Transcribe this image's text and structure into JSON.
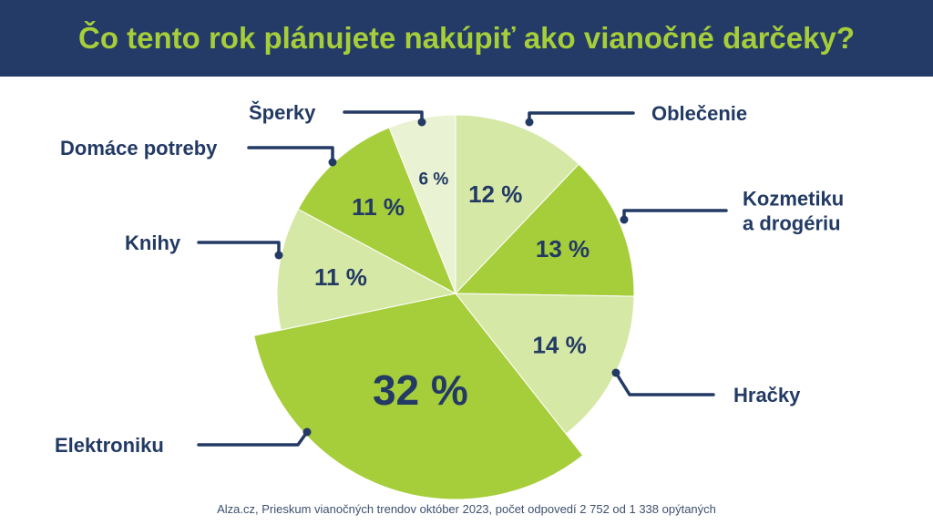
{
  "title": "Čo tento rok plánujete nakúpiť ako vianočné darčeky?",
  "source": "Alza.cz, Prieskum vianočných trendov október 2023, počet odpovedí 2 752 od 1 338 opýtaných",
  "colors": {
    "header_bg": "#233b66",
    "title": "#a6cd3a",
    "text": "#223a64",
    "green_dark": "#a6cd3a",
    "green_light": "#d6e8a6",
    "green_pale": "#e9f2d2"
  },
  "chart_data": {
    "type": "pie",
    "title": "Čo tento rok plánujete nakúpiť ako vianočné darčeky?",
    "slices": [
      {
        "label": "Oblečenie",
        "value": 12,
        "value_label": "12 %",
        "color": "#d6e8a6"
      },
      {
        "label": "Kozmetiku a drogériu",
        "label_lines": [
          "Kozmetiku",
          "a drogériu"
        ],
        "value": 13,
        "value_label": "13 %",
        "color": "#a6cd3a"
      },
      {
        "label": "Hračky",
        "value": 14,
        "value_label": "14 %",
        "color": "#d6e8a6"
      },
      {
        "label": "Elektroniku",
        "value": 32,
        "value_label": "32 %",
        "color": "#a6cd3a",
        "exploded": true
      },
      {
        "label": "Knihy",
        "value": 11,
        "value_label": "11 %",
        "color": "#d6e8a6"
      },
      {
        "label": "Domáce potreby",
        "value": 11,
        "value_label": "11 %",
        "color": "#a6cd3a"
      },
      {
        "label": "Šperky",
        "value": 6,
        "value_label": "6 %",
        "color": "#e9f2d2"
      }
    ],
    "start": "top",
    "direction": "clockwise",
    "legend": "none"
  }
}
